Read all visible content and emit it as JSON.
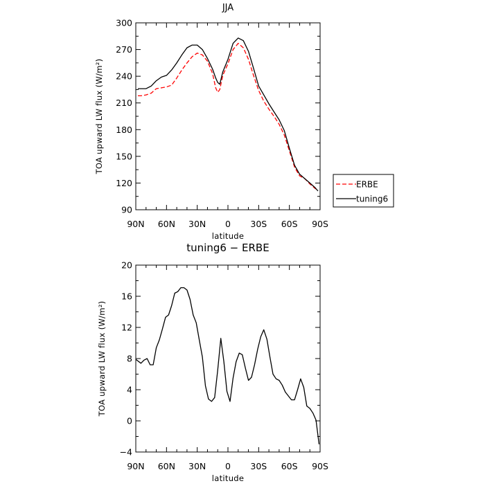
{
  "chart_data": [
    {
      "type": "line",
      "title": "JJA",
      "xlabel": "latitude",
      "ylabel": "TOA upward LW flux (W/m²)",
      "xlim": [
        90,
        -90
      ],
      "ylim": [
        90,
        300
      ],
      "x_tick_values": [
        90,
        60,
        30,
        0,
        -30,
        -60,
        -90
      ],
      "x_tick_labels": [
        "90N",
        "60N",
        "30N",
        "0",
        "30S",
        "60S",
        "90S"
      ],
      "y_tick_values": [
        90,
        120,
        150,
        180,
        210,
        240,
        270,
        300
      ],
      "y_tick_labels": [
        "90",
        "120",
        "150",
        "180",
        "210",
        "240",
        "270",
        "300"
      ],
      "legend": "outside-right",
      "grid": false,
      "series": [
        {
          "name": "ERBE",
          "color": "#ff0000",
          "dash": "dashed",
          "x": [
            88,
            85,
            80,
            75,
            70,
            65,
            60,
            55,
            50,
            45,
            40,
            35,
            30,
            25,
            20,
            15,
            12,
            10,
            8,
            5,
            0,
            -5,
            -10,
            -15,
            -20,
            -25,
            -30,
            -35,
            -40,
            -45,
            -50,
            -55,
            -60,
            -65,
            -70,
            -75,
            -80,
            -85,
            -88
          ],
          "y": [
            218,
            218,
            219,
            221,
            226,
            227,
            228,
            230,
            238,
            247,
            255,
            262,
            266,
            264,
            257,
            243,
            227,
            222,
            225,
            241,
            254,
            270,
            277,
            272,
            259,
            241,
            224,
            212,
            203,
            195,
            186,
            174,
            156,
            138,
            128,
            125,
            119,
            114,
            112
          ]
        },
        {
          "name": "tuning6",
          "color": "#000000",
          "dash": "solid",
          "x": [
            88,
            85,
            80,
            75,
            70,
            65,
            60,
            55,
            50,
            45,
            40,
            35,
            30,
            25,
            20,
            15,
            12,
            10,
            8,
            5,
            0,
            -5,
            -10,
            -15,
            -20,
            -25,
            -30,
            -35,
            -40,
            -45,
            -50,
            -55,
            -60,
            -65,
            -70,
            -75,
            -80,
            -85,
            -88
          ],
          "y": [
            226,
            226,
            226,
            229,
            235,
            239,
            241,
            247,
            255,
            264,
            272,
            275,
            275,
            270,
            260,
            248,
            238,
            233,
            231,
            245,
            259,
            277,
            283,
            280,
            268,
            249,
            229,
            219,
            209,
            200,
            191,
            179,
            159,
            140,
            130,
            125,
            120,
            115,
            111
          ]
        }
      ]
    },
    {
      "type": "line",
      "title": "tuning6 − ERBE",
      "xlabel": "latitude",
      "ylabel": "TOA upward LW flux (W/m²)",
      "xlim": [
        90,
        -90
      ],
      "ylim": [
        -4,
        20
      ],
      "x_tick_values": [
        90,
        60,
        30,
        0,
        -30,
        -60,
        -90
      ],
      "x_tick_labels": [
        "90N",
        "60N",
        "30N",
        "0",
        "30S",
        "60S",
        "90S"
      ],
      "y_tick_values": [
        -4,
        0,
        4,
        8,
        12,
        16,
        20
      ],
      "y_tick_labels": [
        "−4",
        "0",
        "4",
        "8",
        "12",
        "16",
        "20"
      ],
      "grid": false,
      "series": [
        {
          "color": "#000000",
          "dash": "solid",
          "x": [
            90,
            85,
            82,
            79,
            76,
            73,
            70,
            67,
            64,
            61,
            58,
            55,
            52,
            49,
            46,
            43,
            40,
            37,
            34,
            31,
            28,
            25,
            22,
            19,
            16,
            13,
            10,
            7,
            4,
            1,
            -2,
            -5,
            -8,
            -11,
            -14,
            -17,
            -20,
            -23,
            -26,
            -29,
            -32,
            -35,
            -38,
            -41,
            -44,
            -47,
            -50,
            -53,
            -56,
            -59,
            -62,
            -65,
            -68,
            -71,
            -74,
            -77,
            -80,
            -83,
            -86,
            -89
          ],
          "y": [
            7.9,
            7.4,
            7.8,
            8.0,
            7.2,
            7.2,
            9.4,
            10.4,
            11.8,
            13.3,
            13.6,
            14.8,
            16.4,
            16.6,
            17.1,
            17.1,
            16.8,
            15.6,
            13.6,
            12.6,
            10.4,
            8.2,
            4.5,
            2.8,
            2.5,
            3.0,
            6.5,
            10.6,
            7.6,
            3.8,
            2.5,
            5.5,
            7.6,
            8.7,
            8.5,
            6.8,
            5.2,
            5.6,
            7.2,
            9.2,
            10.8,
            11.7,
            10.5,
            8.2,
            6.0,
            5.4,
            5.2,
            4.6,
            3.7,
            3.2,
            2.7,
            2.7,
            4.0,
            5.4,
            4.3,
            1.9,
            1.6,
            1.0,
            0.1,
            -3.0
          ]
        }
      ]
    }
  ]
}
